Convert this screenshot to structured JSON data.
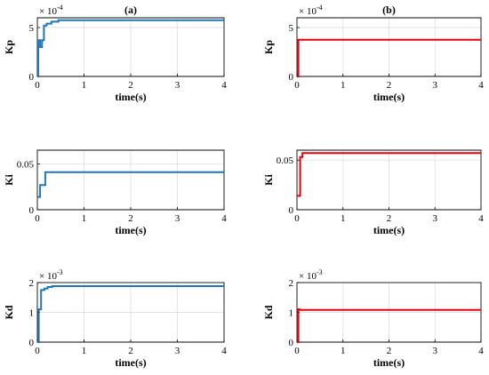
{
  "colors": {
    "left": "#1f77b4",
    "right": "#e8000b"
  },
  "panel_titles": [
    "(a)",
    "(b)"
  ],
  "chart_data": [
    {
      "type": "line",
      "title": "(a)",
      "xlabel": "time(s)",
      "ylabel": "Kp",
      "xlim": [
        0,
        4
      ],
      "ylim": [
        0,
        6
      ],
      "xticks": [
        "0",
        "1",
        "2",
        "3",
        "4"
      ],
      "yticks": [
        "0",
        "5"
      ],
      "exponent": "× 10^-4",
      "exponent_base": "× 10",
      "exponent_power": "-4",
      "grid": true,
      "series": [
        {
          "color": "#1f77b4",
          "x": [
            0,
            0.02,
            0.02,
            0.06,
            0.06,
            0.1,
            0.1,
            0.14,
            0.14,
            0.2,
            0.2,
            0.3,
            0.3,
            0.45,
            0.45,
            4
          ],
          "y": [
            0,
            0,
            3.7,
            3.7,
            3.0,
            3.0,
            3.7,
            3.7,
            5.2,
            5.2,
            5.4,
            5.4,
            5.6,
            5.6,
            5.75,
            5.75
          ]
        }
      ]
    },
    {
      "type": "line",
      "title": "(b)",
      "xlabel": "time(s)",
      "ylabel": "Kp",
      "xlim": [
        0,
        4
      ],
      "ylim": [
        0,
        6
      ],
      "xticks": [
        "0",
        "1",
        "2",
        "3",
        "4"
      ],
      "yticks": [
        "0",
        "5"
      ],
      "exponent": "× 10^-4",
      "exponent_base": "× 10",
      "exponent_power": "-4",
      "grid": true,
      "series": [
        {
          "color": "#e8000b",
          "x": [
            0,
            0.03,
            0.03,
            4
          ],
          "y": [
            0,
            0,
            3.75,
            3.75
          ]
        }
      ]
    },
    {
      "type": "line",
      "title": "",
      "xlabel": "time(s)",
      "ylabel": "Ki",
      "xlim": [
        0,
        4
      ],
      "ylim": [
        0,
        0.065
      ],
      "xticks": [
        "0",
        "1",
        "2",
        "3",
        "4"
      ],
      "yticks": [
        "0",
        "0.05"
      ],
      "ytick_values": [
        0,
        0.05
      ],
      "grid": true,
      "series": [
        {
          "color": "#1f77b4",
          "x": [
            0,
            0.06,
            0.06,
            0.12,
            0.12,
            0.17,
            0.17,
            4
          ],
          "y": [
            0.014,
            0.014,
            0.027,
            0.027,
            0.027,
            0.027,
            0.041,
            0.041
          ]
        }
      ]
    },
    {
      "type": "line",
      "title": "",
      "xlabel": "time(s)",
      "ylabel": "Ki",
      "xlim": [
        0,
        4
      ],
      "ylim": [
        0,
        0.06
      ],
      "xticks": [
        "0",
        "1",
        "2",
        "3",
        "4"
      ],
      "yticks": [
        "0",
        "0.05"
      ],
      "ytick_values": [
        0,
        0.05
      ],
      "grid": true,
      "series": [
        {
          "color": "#e8000b",
          "x": [
            0,
            0.07,
            0.07,
            0.12,
            0.12,
            4
          ],
          "y": [
            0.014,
            0.014,
            0.053,
            0.053,
            0.057,
            0.057
          ]
        }
      ]
    },
    {
      "type": "line",
      "title": "",
      "xlabel": "time(s)",
      "ylabel": "Kd",
      "xlim": [
        0,
        4
      ],
      "ylim": [
        0,
        2
      ],
      "xticks": [
        "0",
        "1",
        "2",
        "3",
        "4"
      ],
      "yticks": [
        "0",
        "1",
        "2"
      ],
      "exponent": "× 10^-3",
      "exponent_base": "× 10",
      "exponent_power": "-3",
      "grid": true,
      "series": [
        {
          "color": "#1f77b4",
          "x": [
            0,
            0.03,
            0.03,
            0.08,
            0.08,
            0.15,
            0.15,
            0.22,
            0.22,
            0.32,
            0.32,
            4
          ],
          "y": [
            0,
            0,
            1.1,
            1.1,
            1.75,
            1.75,
            1.8,
            1.8,
            1.85,
            1.85,
            1.88,
            1.88
          ]
        }
      ]
    },
    {
      "type": "line",
      "title": "",
      "xlabel": "time(s)",
      "ylabel": "Kd",
      "xlim": [
        0,
        4
      ],
      "ylim": [
        0,
        2
      ],
      "xticks": [
        "0",
        "1",
        "2",
        "3",
        "4"
      ],
      "yticks": [
        "0",
        "1",
        "2"
      ],
      "exponent": "× 10^-3",
      "exponent_base": "× 10",
      "exponent_power": "-3",
      "grid": true,
      "series": [
        {
          "color": "#e8000b",
          "x": [
            0,
            0.03,
            0.03,
            0.06,
            0.06,
            4
          ],
          "y": [
            0,
            0,
            1.1,
            1.1,
            1.08,
            1.08
          ]
        }
      ]
    }
  ]
}
